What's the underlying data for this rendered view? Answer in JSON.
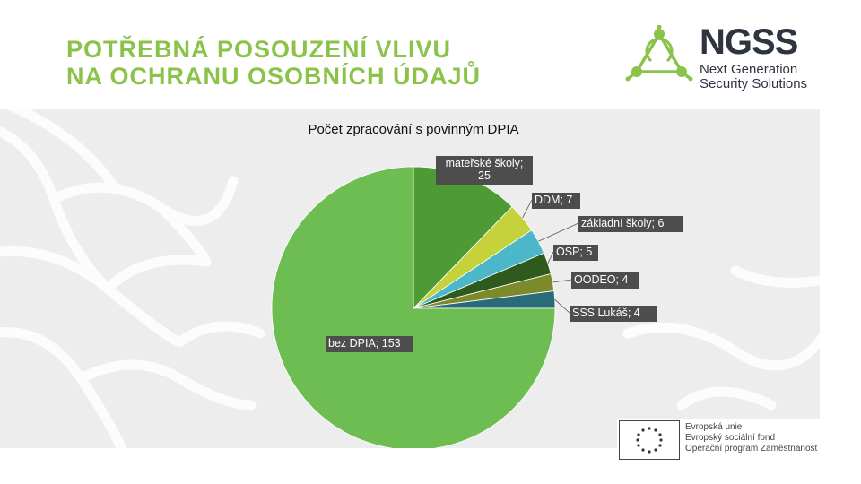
{
  "slide": {
    "title_line1": "POTŘEBNÁ POSOUZENÍ VLIVU",
    "title_line2": "NA OCHRANU OSOBNÍCH ÚDAJŮ"
  },
  "logo": {
    "brand": "NGSS",
    "line1": "Next Generation",
    "line2": "Security Solutions",
    "accent_color": "#8bc34a"
  },
  "footer": {
    "line1": "Evropská unie",
    "line2": "Evropský sociální fond",
    "line3": "Operační program Zaměstnanost"
  },
  "chart_data": {
    "type": "pie",
    "title": "Počet zpracování s povinným DPIA",
    "slices": [
      {
        "label": "mateřské školy",
        "value": 25,
        "color": "#4e9a35",
        "display": [
          "mateřské školy;",
          "25"
        ]
      },
      {
        "label": "DDM",
        "value": 7,
        "color": "#c5d23c",
        "display": [
          "DDM; 7"
        ]
      },
      {
        "label": "základní školy",
        "value": 6,
        "color": "#4bb7c9",
        "display": [
          "základní školy; 6"
        ]
      },
      {
        "label": "OSP",
        "value": 5,
        "color": "#2f5a1e",
        "display": [
          "OSP; 5"
        ]
      },
      {
        "label": "OODEO",
        "value": 4,
        "color": "#7d8a2c",
        "display": [
          "OODEO; 4"
        ]
      },
      {
        "label": "SSS Lukáš",
        "value": 4,
        "color": "#2a6b7a",
        "display": [
          "SSS Lukáš; 4"
        ]
      },
      {
        "label": "bez DPIA",
        "value": 153,
        "color": "#6dbd52",
        "display": [
          "bez DPIA; 153"
        ]
      }
    ],
    "legend": "none"
  }
}
